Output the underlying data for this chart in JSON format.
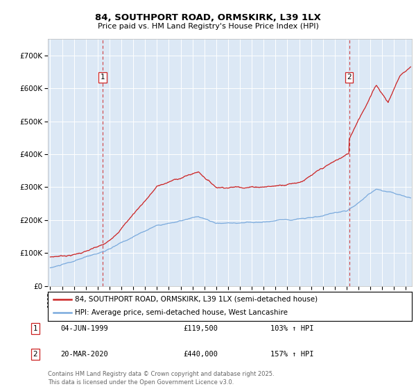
{
  "title_line1": "84, SOUTHPORT ROAD, ORMSKIRK, L39 1LX",
  "title_line2": "Price paid vs. HM Land Registry's House Price Index (HPI)",
  "ylim": [
    0,
    750000
  ],
  "yticks": [
    0,
    100000,
    200000,
    300000,
    400000,
    500000,
    600000,
    700000
  ],
  "ytick_labels": [
    "£0",
    "£100K",
    "£200K",
    "£300K",
    "£400K",
    "£500K",
    "£600K",
    "£700K"
  ],
  "hpi_color": "#7aaadd",
  "price_color": "#cc2222",
  "background_color": "#dce8f5",
  "purchase1": {
    "date_num": 1999.42,
    "price": 119500,
    "label": "1",
    "date_str": "04-JUN-1999",
    "pct": "103%"
  },
  "purchase2": {
    "date_num": 2020.21,
    "price": 440000,
    "label": "2",
    "date_str": "20-MAR-2020",
    "pct": "157%"
  },
  "legend_property": "84, SOUTHPORT ROAD, ORMSKIRK, L39 1LX (semi-detached house)",
  "legend_hpi": "HPI: Average price, semi-detached house, West Lancashire",
  "footnote": "Contains HM Land Registry data © Crown copyright and database right 2025.\nThis data is licensed under the Open Government Licence v3.0.",
  "xmin": 1994.8,
  "xmax": 2025.5
}
